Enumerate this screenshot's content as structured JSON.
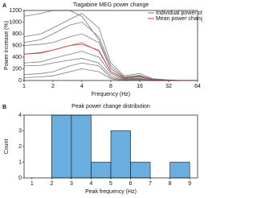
{
  "chart_data": [
    {
      "type": "line",
      "panel": "A",
      "title": "Tiagabine MEG power change",
      "xlabel": "Frequency (Hz)",
      "ylabel": "Power increase (%)",
      "x": [
        1,
        1.5,
        2,
        3,
        4,
        6,
        8,
        11,
        16,
        22,
        32,
        45,
        64
      ],
      "xscale": "log2",
      "xlim": [
        1,
        64
      ],
      "xticks": [
        1,
        2,
        4,
        8,
        16,
        32,
        64
      ],
      "ylim": [
        0,
        1200
      ],
      "yticks": [
        0,
        200,
        400,
        600,
        800,
        1000,
        1200
      ],
      "legend": "upper right",
      "series": [
        {
          "name": "Individual power change",
          "color": "#7a7a7a",
          "values": [
            1100,
            1150,
            1200,
            1200,
            1100,
            700,
            200,
            50,
            80,
            20,
            0,
            0,
            0
          ]
        },
        {
          "name": "Individual power change",
          "color": "#7a7a7a",
          "values": [
            750,
            800,
            900,
            1050,
            1150,
            900,
            300,
            80,
            120,
            30,
            10,
            0,
            0
          ]
        },
        {
          "name": "Individual power change",
          "color": "#7a7a7a",
          "values": [
            650,
            700,
            800,
            950,
            1000,
            750,
            250,
            60,
            90,
            20,
            0,
            0,
            0
          ]
        },
        {
          "name": "Individual power change",
          "color": "#7a7a7a",
          "values": [
            600,
            620,
            650,
            750,
            800,
            650,
            200,
            50,
            70,
            10,
            0,
            0,
            0
          ]
        },
        {
          "name": "Individual power change",
          "color": "#7a7a7a",
          "values": [
            450,
            480,
            520,
            600,
            650,
            500,
            150,
            40,
            60,
            10,
            0,
            0,
            0
          ]
        },
        {
          "name": "Individual power change",
          "color": "#7a7a7a",
          "values": [
            300,
            320,
            380,
            450,
            500,
            400,
            120,
            30,
            40,
            0,
            0,
            0,
            0
          ]
        },
        {
          "name": "Individual power change",
          "color": "#7a7a7a",
          "values": [
            250,
            260,
            300,
            350,
            380,
            300,
            80,
            20,
            30,
            0,
            0,
            0,
            0
          ]
        },
        {
          "name": "Individual power change",
          "color": "#7a7a7a",
          "values": [
            100,
            120,
            150,
            250,
            300,
            250,
            50,
            10,
            20,
            0,
            0,
            0,
            0
          ]
        },
        {
          "name": "Individual power change",
          "color": "#7a7a7a",
          "values": [
            50,
            60,
            80,
            150,
            200,
            150,
            30,
            0,
            10,
            0,
            0,
            0,
            0
          ]
        },
        {
          "name": "Mean power change",
          "color": "#e03030",
          "values": [
            450,
            470,
            520,
            600,
            620,
            520,
            150,
            40,
            60,
            10,
            0,
            0,
            0
          ]
        }
      ]
    },
    {
      "type": "histogram",
      "panel": "B",
      "title": "Peak power change distribution",
      "xlabel": "Peak frequency (Hz)",
      "ylabel": "Count",
      "bins": [
        2,
        3,
        4,
        5,
        6,
        7,
        8,
        9
      ],
      "values": [
        4,
        4,
        1,
        3,
        1,
        0,
        1
      ],
      "color": "#6aaee0",
      "xlim": [
        0.6,
        9.4
      ],
      "xticks": [
        1,
        2,
        3,
        4,
        5,
        6,
        7,
        8,
        9
      ],
      "ylim": [
        0,
        4
      ],
      "yticks": [
        0,
        1,
        2,
        3,
        4
      ]
    }
  ]
}
